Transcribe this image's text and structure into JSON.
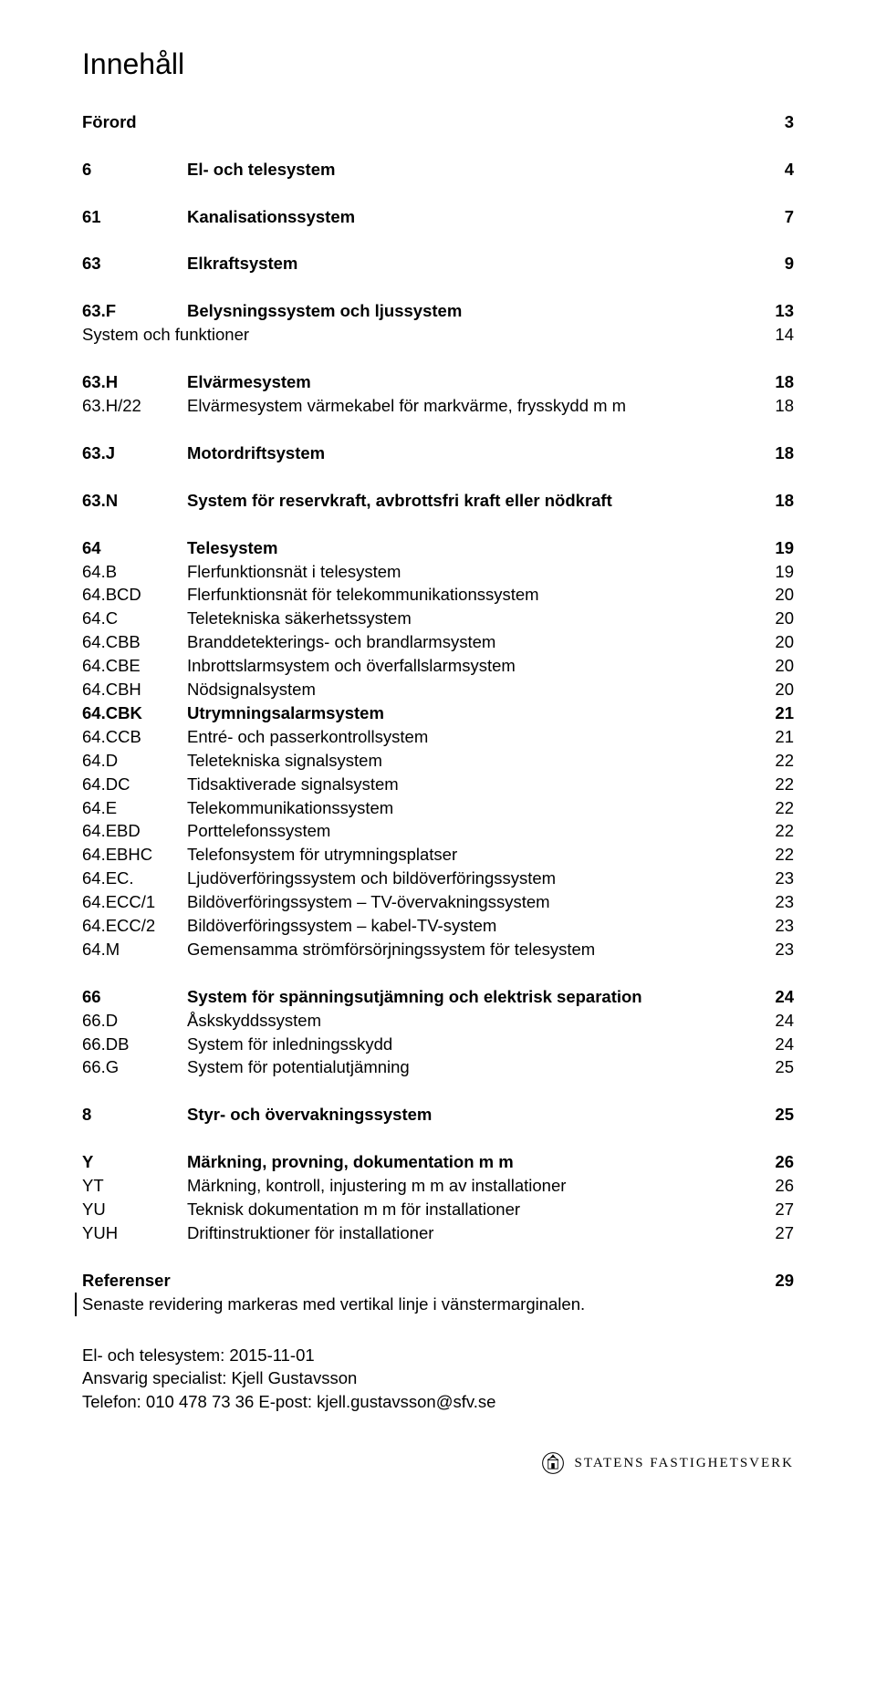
{
  "title": "Innehåll",
  "forord": {
    "code": "Förord",
    "page": "3"
  },
  "sections": [
    {
      "code": "6",
      "label": "El- och telesystem",
      "page": "4",
      "bold": true,
      "gapAfter": "md"
    },
    {
      "code": "61",
      "label": "Kanalisationssystem",
      "page": "7",
      "bold": true,
      "gapAfter": "md"
    },
    {
      "code": "63",
      "label": "Elkraftsystem",
      "page": "9",
      "bold": true,
      "gapAfter": "md"
    },
    {
      "code": "63.F",
      "label": "Belysningssystem och ljussystem",
      "page": "13",
      "bold": true
    },
    {
      "code": "",
      "label": "System och funktioner",
      "page": "14",
      "gapAfter": "md",
      "noCode": true
    },
    {
      "code": "63.H",
      "label": "Elvärmesystem",
      "page": "18",
      "bold": true
    },
    {
      "code": "63.H/22",
      "label": "Elvärmesystem värmekabel för markvärme, frysskydd m m",
      "page": "18",
      "gapAfter": "md"
    },
    {
      "code": "63.J",
      "label": "Motordriftsystem",
      "page": "18",
      "bold": true,
      "gapAfter": "md"
    },
    {
      "code": "63.N",
      "label": "System för reservkraft, avbrottsfri kraft eller nödkraft",
      "page": "18",
      "bold": true,
      "gapAfter": "md"
    },
    {
      "code": "64",
      "label": "Telesystem",
      "page": "19",
      "bold": true
    },
    {
      "code": "64.B",
      "label": "Flerfunktionsnät i telesystem",
      "page": "19"
    },
    {
      "code": "64.BCD",
      "label": "Flerfunktionsnät för telekommunikationssystem",
      "page": "20"
    },
    {
      "code": "64.C",
      "label": "Teletekniska säkerhetssystem",
      "page": "20"
    },
    {
      "code": "64.CBB",
      "label": "Branddetekterings- och brandlarmsystem",
      "page": "20"
    },
    {
      "code": "64.CBE",
      "label": "Inbrottslarmsystem och överfallslarmsystem",
      "page": "20"
    },
    {
      "code": "64.CBH",
      "label": "Nödsignalsystem",
      "page": "20"
    },
    {
      "code": "64.CBK",
      "label": "Utrymningsalarmsystem",
      "page": "21",
      "bold": true
    },
    {
      "code": "64.CCB",
      "label": "Entré- och passerkontrollsystem",
      "page": "21"
    },
    {
      "code": "64.D",
      "label": "Teletekniska signalsystem",
      "page": "22"
    },
    {
      "code": "64.DC",
      "label": "Tidsaktiverade signalsystem",
      "page": "22"
    },
    {
      "code": "64.E",
      "label": "Telekommunikationssystem",
      "page": "22"
    },
    {
      "code": "64.EBD",
      "label": "Porttelefonssystem",
      "page": "22"
    },
    {
      "code": "64.EBHC",
      "label": "Telefonsystem för utrymningsplatser",
      "page": "22"
    },
    {
      "code": "64.EC.",
      "label": "Ljudöverföringssystem och bildöverföringssystem",
      "page": "23"
    },
    {
      "code": "64.ECC/1",
      "label": "Bildöverföringssystem – TV-övervakningssystem",
      "page": "23"
    },
    {
      "code": "64.ECC/2",
      "label": "Bildöverföringssystem – kabel-TV-system",
      "page": "23"
    },
    {
      "code": "64.M",
      "label": "Gemensamma strömförsörjningssystem för telesystem",
      "page": "23",
      "gapAfter": "md"
    },
    {
      "code": "66",
      "label": "System för spänningsutjämning och elektrisk separation",
      "page": "24",
      "bold": true
    },
    {
      "code": "66.D",
      "label": "Åskskyddssystem",
      "page": "24"
    },
    {
      "code": "66.DB",
      "label": "System för inledningsskydd",
      "page": "24"
    },
    {
      "code": "66.G",
      "label": "System för potentialutjämning",
      "page": "25",
      "gapAfter": "md"
    },
    {
      "code": "8",
      "label": "Styr- och övervakningssystem",
      "page": "25",
      "bold": true,
      "gapAfter": "md"
    },
    {
      "code": "Y",
      "label": "Märkning, provning, dokumentation m m",
      "page": "26",
      "bold": true
    },
    {
      "code": "YT",
      "label": "Märkning, kontroll, injustering m m av installationer",
      "page": "26"
    },
    {
      "code": "YU",
      "label": "Teknisk dokumentation m m för installationer",
      "page": "27"
    },
    {
      "code": "YUH",
      "label": "Driftinstruktioner för installationer",
      "page": "27",
      "gapAfter": "md"
    }
  ],
  "references": {
    "label": "Referenser",
    "page": "29"
  },
  "revisionNote": "Senaste revidering markeras med vertikal linje i vänstermarginalen.",
  "footer": {
    "line1": "El- och telesystem: 2015-11-01",
    "line2": "Ansvarig specialist: Kjell Gustavsson",
    "line3": "Telefon: 010 478 73 36 E-post: kjell.gustavsson@sfv.se"
  },
  "logoText": "STATENS FASTIGHETSVERK"
}
